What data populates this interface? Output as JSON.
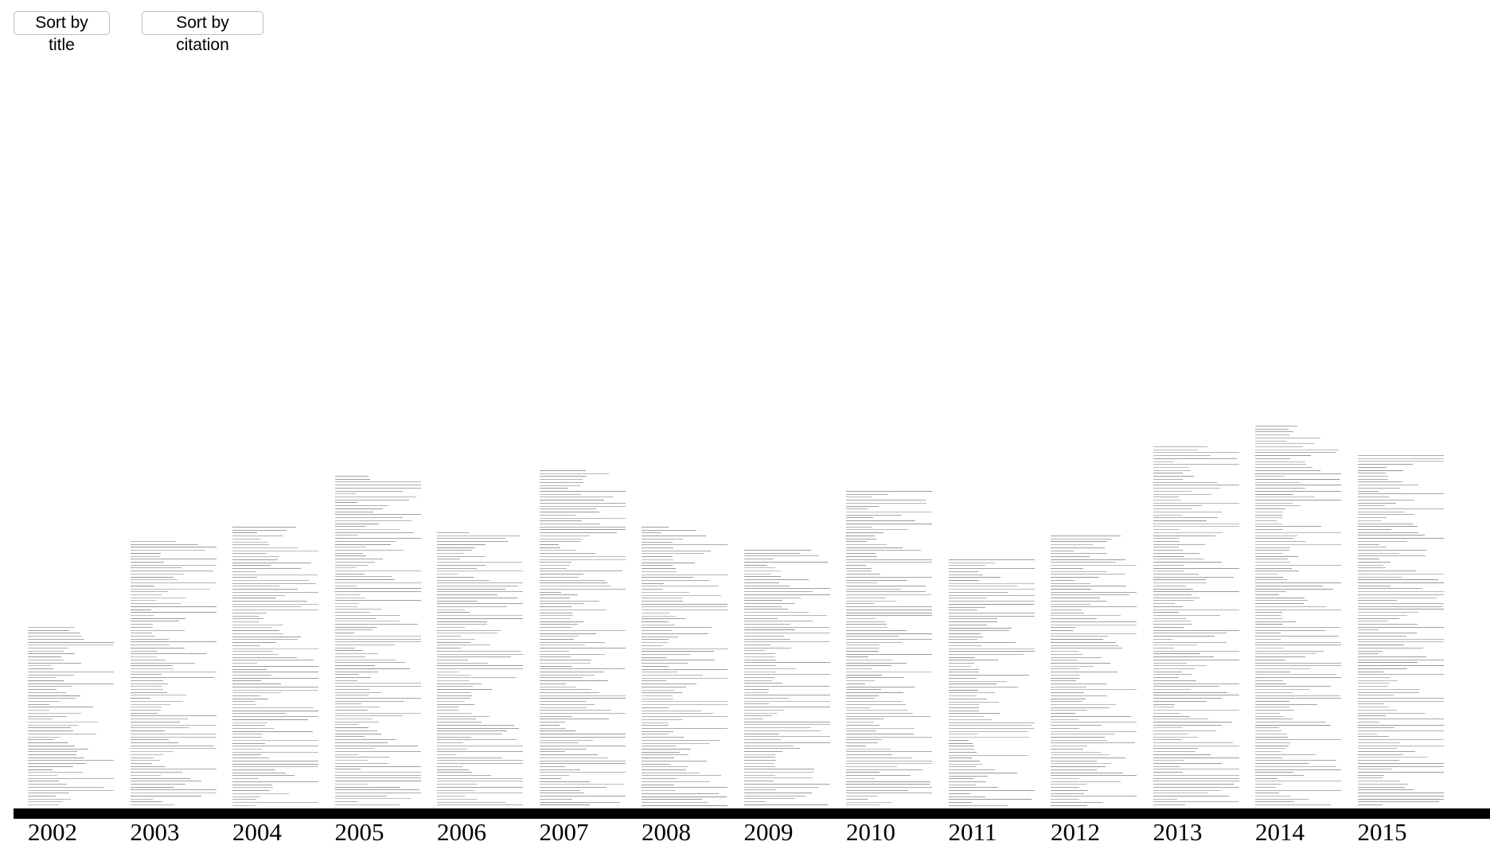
{
  "toolbar": {
    "sort_title_label": "Sort by title",
    "sort_citation_label": "Sort by citation"
  },
  "chart_data": {
    "type": "bar",
    "title": "",
    "xlabel": "",
    "ylabel": "",
    "categories": [
      "2002",
      "2003",
      "2004",
      "2005",
      "2006",
      "2007",
      "2008",
      "2009",
      "2010",
      "2011",
      "2012",
      "2013",
      "2014",
      "2015"
    ],
    "values": [
      61,
      90,
      95,
      112,
      93,
      114,
      95,
      87,
      107,
      84,
      92,
      122,
      129,
      119
    ],
    "ylim": [
      0,
      140
    ],
    "grid": false,
    "legend": "none"
  },
  "colors": {
    "axis": "#000000",
    "paper_text": "#8a8a8a",
    "background": "#ffffff"
  }
}
